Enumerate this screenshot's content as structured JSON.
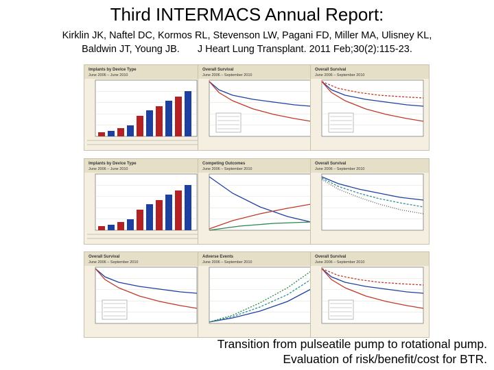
{
  "slide": {
    "title": "Third INTERMACS Annual Report:",
    "citation_line1_authors": "Kirklin JK, Naftel DC, Kormos RL, Stevenson LW, Pagani FD, Miller MA, Ulisney KL,",
    "citation_line2_authors": "Baldwin JT, Young JB.",
    "citation_line2_journal": "J Heart Lung Transplant. 2011 Feb;30(2):115-23.",
    "caption_line1": "Transition from pulseatile pump to rotational pump.",
    "caption_line2": "Evaluation of risk/benefit/cost for BTR."
  },
  "figures": [
    {
      "header": "June 2006 – June 2010",
      "subtitle": "Implants by Device Type",
      "kind": "bar"
    },
    {
      "header": "June 2006 – September 2010",
      "subtitle": "Overall Survival",
      "kind": "survival"
    },
    {
      "header": "June 2006 – September 2010",
      "subtitle": "Overall Survival",
      "kind": "survival2"
    },
    {
      "header": "June 2006 – June 2010",
      "subtitle": "Implants by Device Type",
      "kind": "bar"
    },
    {
      "header": "June 2006 – September 2010",
      "subtitle": "Competing Outcomes",
      "kind": "competing"
    },
    {
      "header": "June 2006 – September 2010",
      "subtitle": "Overall Survival",
      "kind": "hazard"
    },
    {
      "header": "June 2006 – September 2010",
      "subtitle": "Overall Survival",
      "kind": "survival"
    },
    {
      "header": "June 2006 – September 2010",
      "subtitle": "Adverse Events",
      "kind": "cumulative"
    },
    {
      "header": "June 2006 – September 2010",
      "subtitle": "Overall Survival",
      "kind": "survival2"
    }
  ]
}
